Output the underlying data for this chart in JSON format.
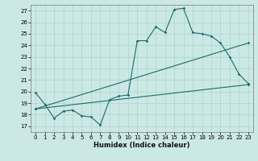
{
  "xlabel": "Humidex (Indice chaleur)",
  "bg_color": "#cce8e5",
  "line_color": "#1a6b6b",
  "grid_color": "#aad4d0",
  "xlim": [
    -0.5,
    23.5
  ],
  "ylim": [
    16.5,
    27.5
  ],
  "yticks": [
    17,
    18,
    19,
    20,
    21,
    22,
    23,
    24,
    25,
    26,
    27
  ],
  "xticks": [
    0,
    1,
    2,
    3,
    4,
    5,
    6,
    7,
    8,
    9,
    10,
    11,
    12,
    13,
    14,
    15,
    16,
    17,
    18,
    19,
    20,
    21,
    22,
    23
  ],
  "line1_x": [
    0,
    1,
    2,
    3,
    4,
    5,
    6,
    7,
    8,
    9,
    10,
    11,
    12,
    13,
    14,
    15,
    16,
    17,
    18,
    19,
    20,
    21,
    22,
    23
  ],
  "line1_y": [
    19.9,
    18.9,
    17.7,
    18.3,
    18.4,
    17.9,
    17.8,
    17.1,
    19.3,
    19.6,
    19.7,
    24.4,
    24.4,
    25.6,
    25.1,
    27.1,
    27.2,
    25.1,
    25.0,
    24.8,
    24.2,
    23.0,
    21.5,
    20.7
  ],
  "line2_x": [
    0,
    23
  ],
  "line2_y": [
    18.5,
    24.2
  ],
  "line3_x": [
    0,
    23
  ],
  "line3_y": [
    18.5,
    20.6
  ]
}
